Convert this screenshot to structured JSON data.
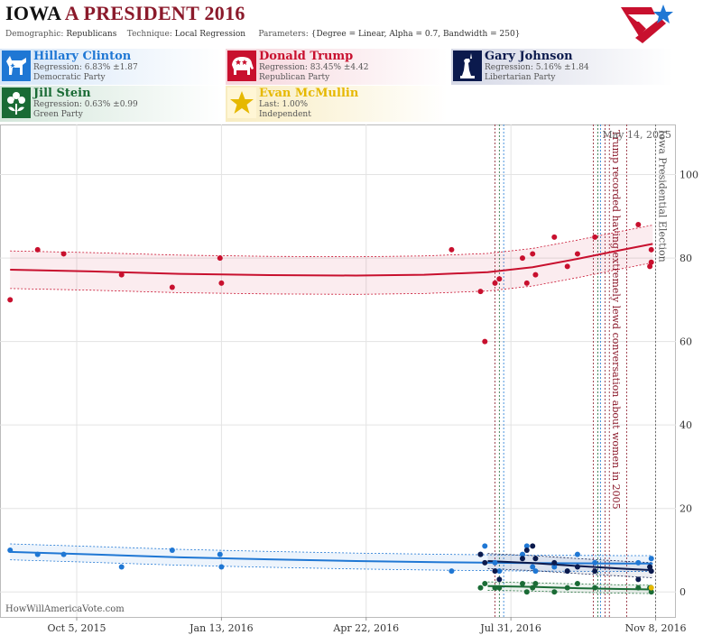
{
  "header": {
    "state": "IOWA",
    "title_rest": "A PRESIDENT 2016",
    "demographic_label": "Demographic:",
    "demographic": "Republicans",
    "technique_label": "Technique:",
    "technique": "Local Regression",
    "parameters_label": "Parameters:",
    "parameters": "{Degree = Linear, Alpha = 0.7, Bandwidth = 250}"
  },
  "candidates": [
    {
      "name": "Hillary Clinton",
      "stat": "Regression: 6.83% ±1.87",
      "party": "Democratic Party",
      "color": "#1f77d4",
      "icon": "donkey-icon"
    },
    {
      "name": "Donald Trump",
      "stat": "Regression: 83.45% ±4.42",
      "party": "Republican Party",
      "color": "#c8102e",
      "icon": "elephant-icon"
    },
    {
      "name": "Gary Johnson",
      "stat": "Regression: 5.16% ±1.84",
      "party": "Libertarian Party",
      "color": "#0b1a4d",
      "icon": "statue-of-liberty-icon"
    },
    {
      "name": "Jill Stein",
      "stat": "Regression: 0.63% ±0.99",
      "party": "Green Party",
      "color": "#1a6b35",
      "icon": "flower-icon"
    },
    {
      "name": "Evan McMullin",
      "stat": "Last: 1.00%",
      "party": "Independent",
      "color": "#e6b800",
      "icon": "star-icon"
    }
  ],
  "watermark": "HowWillAmericaVote.com",
  "chart_data": {
    "type": "scatter",
    "date_label": "May 14, 2025",
    "x_ticks": [
      "Oct 5, 2015",
      "Jan 13, 2016",
      "Apr 22, 2016",
      "Jul 31, 2016",
      "Nov 8, 2016"
    ],
    "x_range": [
      "2015-08-13",
      "2016-11-22"
    ],
    "y_ticks": [
      0,
      20,
      40,
      60,
      80,
      100
    ],
    "ylim": [
      -6,
      112
    ],
    "grid": true,
    "events": [
      {
        "date": "2016-07-20",
        "label": "",
        "color": "#8b1a2b"
      },
      {
        "date": "2016-07-23",
        "label": "",
        "color": "#1a6b35"
      },
      {
        "date": "2016-07-26",
        "label": "",
        "color": "#1f77d4"
      },
      {
        "date": "2016-09-26",
        "label": "",
        "color": "#8b1a2b"
      },
      {
        "date": "2016-09-29",
        "label": "",
        "color": "#1a6b35"
      },
      {
        "date": "2016-10-01",
        "label": "",
        "color": "#1f77d4"
      },
      {
        "date": "2016-10-04",
        "label": "",
        "color": "#8b1a2b"
      },
      {
        "date": "2016-10-07",
        "label": "Trump recorded having extremely lewd conversation about women in 2005",
        "color": "#8b1a2b"
      },
      {
        "date": "2016-10-19",
        "label": "",
        "color": "#8b1a2b"
      },
      {
        "date": "2016-11-08",
        "label": "Iowa Presidential Election",
        "color": "#555555"
      }
    ],
    "series": [
      {
        "name": "Donald Trump",
        "color": "#c8102e",
        "band": 4.5,
        "trend": [
          [
            "2015-08-20",
            77.2
          ],
          [
            "2015-10-15",
            76.8
          ],
          [
            "2015-12-15",
            76.2
          ],
          [
            "2016-02-15",
            75.9
          ],
          [
            "2016-04-15",
            75.8
          ],
          [
            "2016-06-01",
            76.0
          ],
          [
            "2016-07-15",
            76.6
          ],
          [
            "2016-08-15",
            77.8
          ],
          [
            "2016-09-15",
            79.8
          ],
          [
            "2016-10-15",
            81.9
          ],
          [
            "2016-11-06",
            83.4
          ]
        ],
        "points": [
          [
            "2015-08-20",
            70
          ],
          [
            "2015-09-08",
            82
          ],
          [
            "2015-09-26",
            81
          ],
          [
            "2015-11-05",
            76
          ],
          [
            "2015-12-10",
            73
          ],
          [
            "2016-01-12",
            80
          ],
          [
            "2016-01-13",
            74
          ],
          [
            "2016-06-20",
            82
          ],
          [
            "2016-07-10",
            72
          ],
          [
            "2016-07-13",
            60
          ],
          [
            "2016-07-20",
            74
          ],
          [
            "2016-07-23",
            75
          ],
          [
            "2016-08-08",
            80
          ],
          [
            "2016-08-11",
            74
          ],
          [
            "2016-08-15",
            81
          ],
          [
            "2016-08-17",
            76
          ],
          [
            "2016-08-30",
            85
          ],
          [
            "2016-09-08",
            78
          ],
          [
            "2016-09-15",
            81
          ],
          [
            "2016-09-27",
            85
          ],
          [
            "2016-10-27",
            88
          ],
          [
            "2016-11-05",
            82
          ],
          [
            "2016-11-05",
            79
          ],
          [
            "2016-11-04",
            78
          ]
        ]
      },
      {
        "name": "Hillary Clinton",
        "color": "#1f77d4",
        "band": 1.9,
        "trend": [
          [
            "2015-08-20",
            9.6
          ],
          [
            "2015-10-15",
            9.0
          ],
          [
            "2015-12-15",
            8.3
          ],
          [
            "2016-02-15",
            7.8
          ],
          [
            "2016-04-15",
            7.4
          ],
          [
            "2016-06-15",
            7.1
          ],
          [
            "2016-08-15",
            6.9
          ],
          [
            "2016-10-15",
            6.8
          ],
          [
            "2016-11-06",
            6.8
          ]
        ],
        "points": [
          [
            "2015-08-20",
            10
          ],
          [
            "2015-09-08",
            9
          ],
          [
            "2015-09-26",
            9
          ],
          [
            "2015-11-05",
            6
          ],
          [
            "2015-12-10",
            10
          ],
          [
            "2016-01-12",
            9
          ],
          [
            "2016-01-13",
            6
          ],
          [
            "2016-06-20",
            5
          ],
          [
            "2016-07-10",
            9
          ],
          [
            "2016-07-13",
            11
          ],
          [
            "2016-07-20",
            7
          ],
          [
            "2016-07-23",
            5
          ],
          [
            "2016-08-08",
            9
          ],
          [
            "2016-08-11",
            11
          ],
          [
            "2016-08-15",
            6
          ],
          [
            "2016-08-17",
            5
          ],
          [
            "2016-08-30",
            6
          ],
          [
            "2016-09-08",
            5
          ],
          [
            "2016-09-15",
            9
          ],
          [
            "2016-09-27",
            7
          ],
          [
            "2016-10-27",
            7
          ],
          [
            "2016-11-05",
            8
          ],
          [
            "2016-11-04",
            6
          ]
        ]
      },
      {
        "name": "Gary Johnson",
        "color": "#0b1a4d",
        "band": 1.8,
        "trend": [
          [
            "2016-07-15",
            7.4
          ],
          [
            "2016-08-15",
            6.9
          ],
          [
            "2016-09-15",
            6.2
          ],
          [
            "2016-10-15",
            5.6
          ],
          [
            "2016-11-06",
            5.2
          ]
        ],
        "points": [
          [
            "2016-07-10",
            9
          ],
          [
            "2016-07-13",
            7
          ],
          [
            "2016-07-20",
            5
          ],
          [
            "2016-07-23",
            3
          ],
          [
            "2016-08-08",
            8
          ],
          [
            "2016-08-11",
            10
          ],
          [
            "2016-08-15",
            11
          ],
          [
            "2016-08-17",
            8
          ],
          [
            "2016-08-30",
            7
          ],
          [
            "2016-09-08",
            5
          ],
          [
            "2016-09-15",
            6
          ],
          [
            "2016-09-27",
            5
          ],
          [
            "2016-10-27",
            3
          ],
          [
            "2016-11-05",
            5
          ],
          [
            "2016-11-04",
            6
          ]
        ]
      },
      {
        "name": "Jill Stein",
        "color": "#1a6b35",
        "band": 1.0,
        "trend": [
          [
            "2016-07-15",
            1.4
          ],
          [
            "2016-08-15",
            1.2
          ],
          [
            "2016-09-15",
            0.9
          ],
          [
            "2016-10-15",
            0.7
          ],
          [
            "2016-11-06",
            0.6
          ]
        ],
        "points": [
          [
            "2016-07-10",
            1
          ],
          [
            "2016-07-13",
            2
          ],
          [
            "2016-07-20",
            1
          ],
          [
            "2016-07-23",
            1
          ],
          [
            "2016-08-08",
            2
          ],
          [
            "2016-08-11",
            0
          ],
          [
            "2016-08-15",
            1
          ],
          [
            "2016-08-17",
            2
          ],
          [
            "2016-08-30",
            0
          ],
          [
            "2016-09-08",
            1
          ],
          [
            "2016-09-15",
            2
          ],
          [
            "2016-09-27",
            1
          ],
          [
            "2016-10-27",
            1
          ],
          [
            "2016-11-05",
            0
          ],
          [
            "2016-11-04",
            1
          ]
        ]
      },
      {
        "name": "Evan McMullin",
        "color": "#e6b800",
        "band": 0,
        "trend": [],
        "points": [
          [
            "2016-11-05",
            1
          ]
        ]
      }
    ]
  }
}
